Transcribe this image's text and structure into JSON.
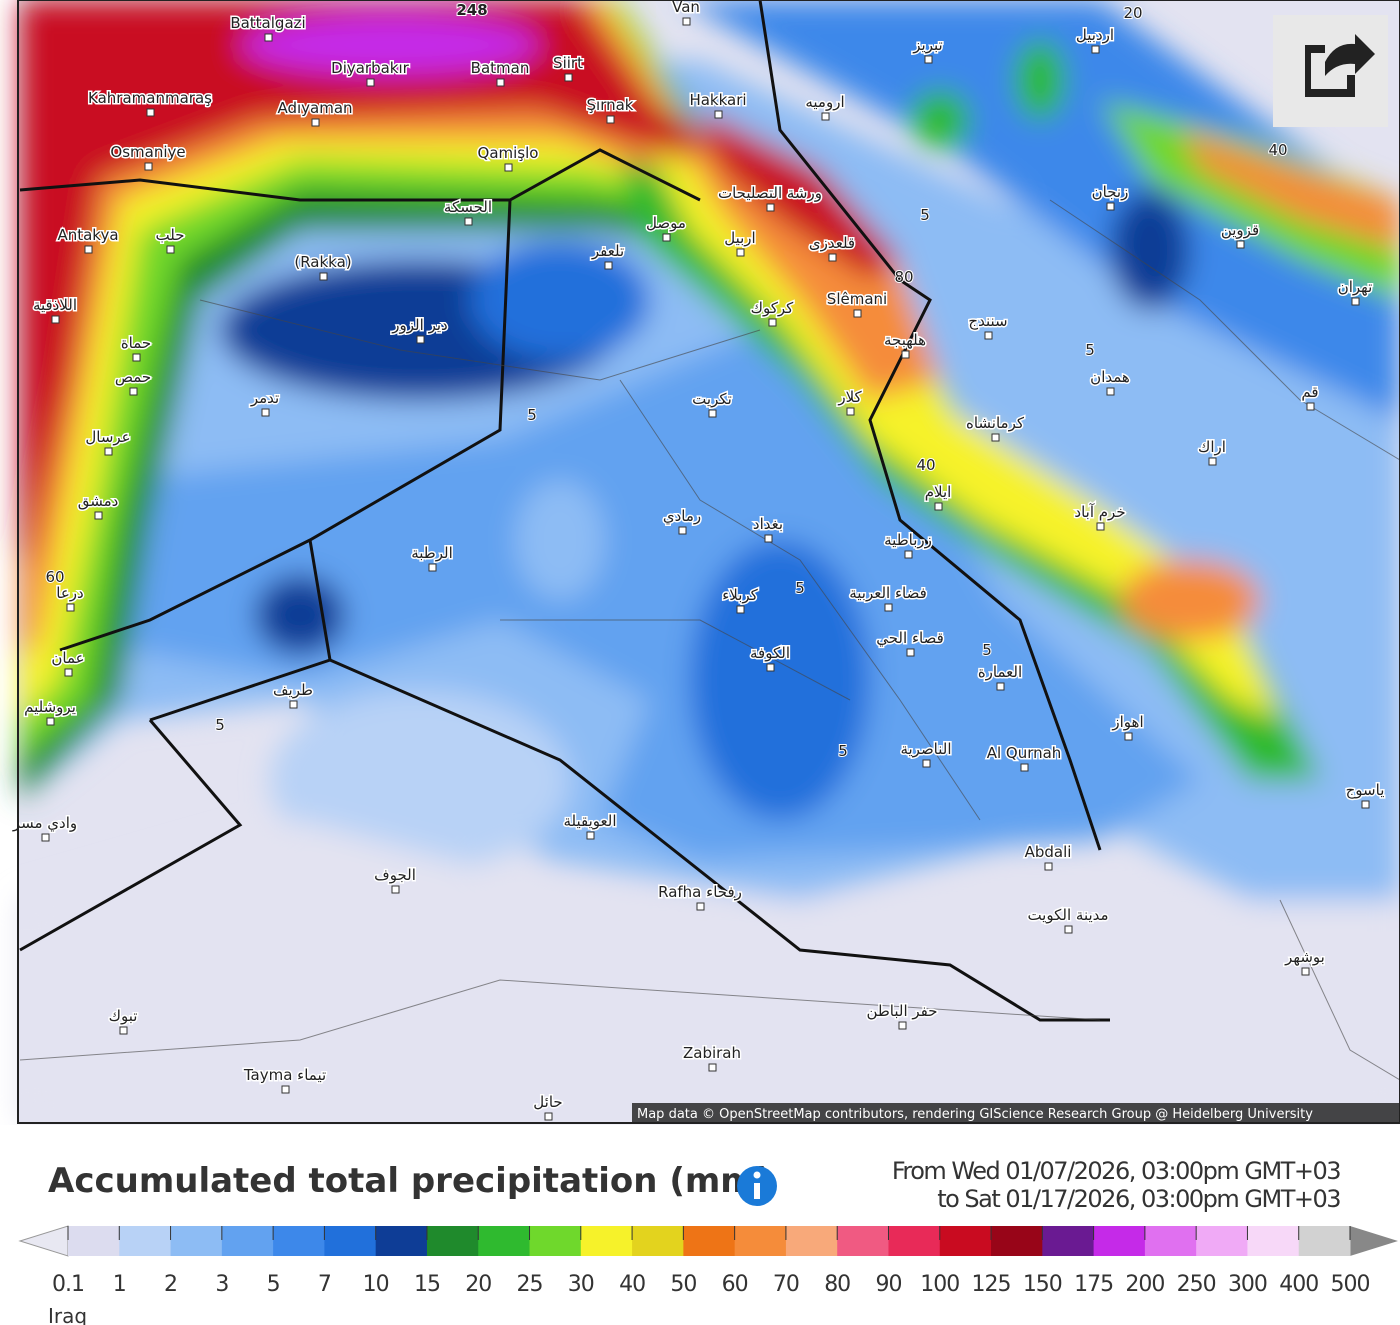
{
  "map": {
    "places": [
      "Van",
      "Battalgazi",
      "Diyarbakır",
      "Batman",
      "Siirt",
      "Kahramanmaraş",
      "Adıyaman",
      "Şırnak",
      "Hakkari",
      "Osmaniye",
      "Qamişlo",
      "تبريز",
      "اردبيل",
      "ارومیه",
      "Antakya",
      "حلب",
      "(Rakka)",
      "الحسكة",
      "تلعفر",
      "موصل",
      "اربيل",
      "ورشة التصليحات",
      "قلعدزی",
      "Slêmani",
      "كركوك",
      "دير الزور",
      "اللاذقية",
      "حماة",
      "حمص",
      "تدمر",
      "تكريت",
      "كلار",
      "هلهبجة",
      "سنندج",
      "زنجان",
      "قزوين",
      "تهران",
      "همدان",
      "قم",
      "اراك",
      "كرمانشاه",
      "ايلام",
      "بغداد",
      "رمادي",
      "زرباطية",
      "الرطبة",
      "کربلاء",
      "فضاء العربية",
      "الكوفة",
      "قصاء الحي",
      "العمارة",
      "عمان",
      "طريف",
      "الناصرية",
      "Al Qurnah",
      "اهواز",
      "العويقيلة",
      "الجوف",
      "Rafha رفحاء",
      "Abdali",
      "مدينة الكويت",
      "Zabirah",
      "Tayma تيماء",
      "حائل",
      "تبوك",
      "حفر الباطن",
      "عرسال",
      "دمشق",
      "درعا",
      "يروشليم",
      "وادي مسر",
      "خرم آباد",
      "ياسوج",
      "بوشهر"
    ],
    "contour_labels": [
      248,
      80,
      40,
      5,
      5,
      5,
      5,
      5,
      5,
      5,
      60,
      40,
      20
    ],
    "attribution": "Map data © OpenStreetMap contributors, rendering GIScience Research Group @ Heidelberg University"
  },
  "legend": {
    "title": "Accumulated total precipitation (mm)",
    "period_from": "From Wed 01/07/2026, 03:00pm GMT+03",
    "period_to": "to Sat 01/17/2026, 03:00pm GMT+03",
    "ticks": [
      0.1,
      1,
      2,
      3,
      5,
      7,
      10,
      15,
      20,
      25,
      30,
      40,
      50,
      60,
      70,
      80,
      90,
      100,
      125,
      150,
      175,
      200,
      250,
      300,
      400,
      500
    ],
    "colors": [
      "#dcdcef",
      "#b8d2f6",
      "#8dbcf4",
      "#62a2f0",
      "#3d88ea",
      "#2170db",
      "#0e3d96",
      "#1f8a2c",
      "#2fba2f",
      "#6fd82c",
      "#f6f22a",
      "#e3d31e",
      "#ee7416",
      "#f58c3a",
      "#f8a97a",
      "#f05a82",
      "#e82a58",
      "#c90b20",
      "#980518",
      "#6a1a92",
      "#c52ae8",
      "#e070f0",
      "#f0aaf6",
      "#f7d8f8",
      "#d2d2d2"
    ]
  },
  "footer": {
    "text": "Iraq"
  }
}
